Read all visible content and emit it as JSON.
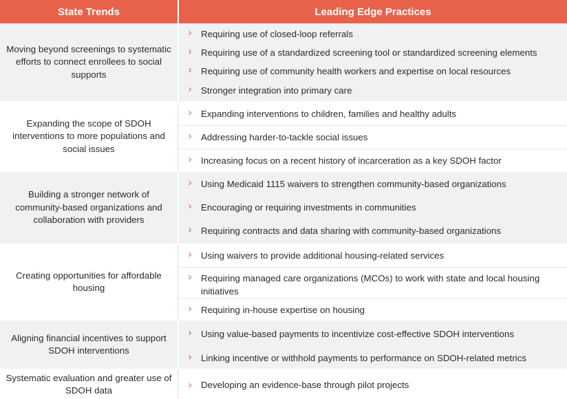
{
  "header": {
    "left": "State Trends",
    "right": "Leading Edge Practices"
  },
  "chevron": "›",
  "accent_color": "#e8624a",
  "rows": [
    {
      "trend": "Moving beyond screenings to systematic efforts to connect enrollees to social supports",
      "practices": [
        "Requiring use of closed-loop referrals",
        "Requiring use of a standardized screening tool or standardized screening elements",
        "Requiring use of community health workers and expertise on local resources",
        "Stronger integration into primary care"
      ]
    },
    {
      "trend": "Expanding the scope of SDOH interventions to more populations and social issues",
      "practices": [
        "Expanding interventions to children, families and healthy adults",
        "Addressing harder-to-tackle social issues",
        "Increasing focus on a recent history of incarceration as a key SDOH factor"
      ]
    },
    {
      "trend": "Building a stronger network of community-based organizations and collaboration with providers",
      "practices": [
        "Using Medicaid 1115 waivers to strengthen community-based organizations",
        "Encouraging or requiring investments in communities",
        "Requiring contracts and data sharing with community-based organizations"
      ]
    },
    {
      "trend": "Creating opportunities for affordable housing",
      "practices": [
        "Using waivers to provide additional housing-related services",
        "Requiring managed care organizations (MCOs) to work with state and local housing initiatives",
        "Requiring in-house expertise on housing"
      ]
    },
    {
      "trend": "Aligning financial incentives to support SDOH interventions",
      "practices": [
        "Using value-based payments to incentivize cost-effective SDOH interventions",
        "Linking incentive or withhold payments to performance on SDOH-related metrics"
      ]
    },
    {
      "trend": "Systematic evaluation and greater use of SDOH data",
      "practices": [
        "Developing an evidence-base through pilot projects"
      ]
    }
  ]
}
